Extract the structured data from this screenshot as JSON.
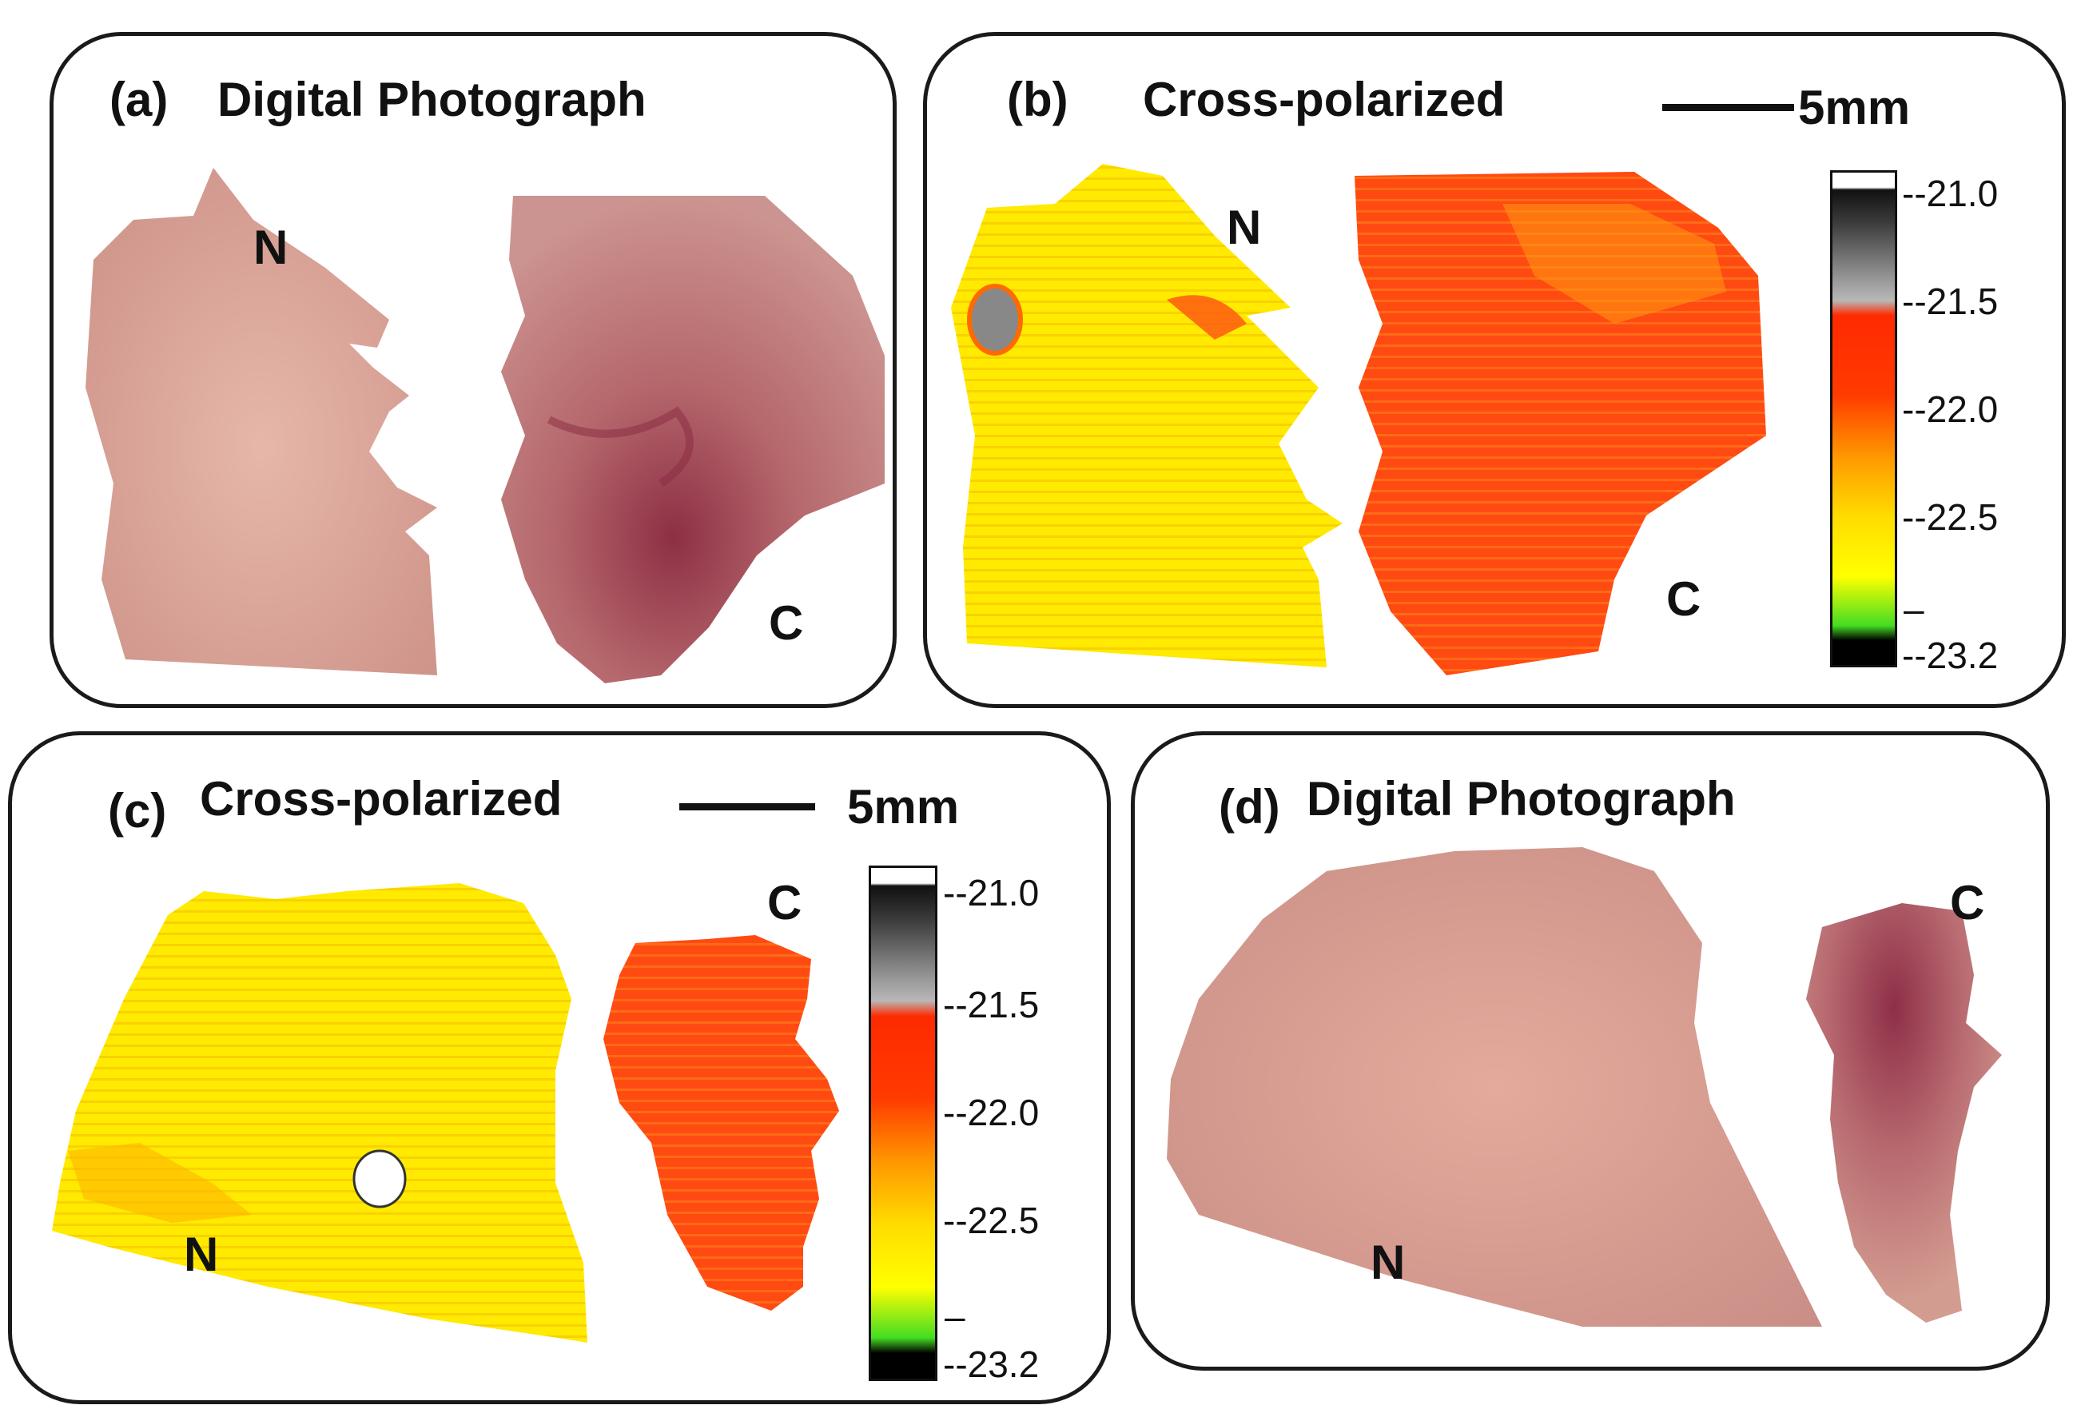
{
  "panels": {
    "a": {
      "label": "(a)",
      "title": "Digital Photograph",
      "n": "N",
      "c": "C"
    },
    "b": {
      "label": "(b)",
      "title": "Cross-polarized",
      "scale": "5mm",
      "n": "N",
      "c": "C"
    },
    "c": {
      "label": "(c)",
      "title": "Cross-polarized",
      "scale": "5mm",
      "n": "N",
      "c": "C"
    },
    "d": {
      "label": "(d)",
      "title": "Digital Photograph",
      "n": "N",
      "c": "C"
    }
  },
  "colorbar": {
    "ticks": [
      "--21.0",
      "--21.5",
      "--22.0",
      "--22.5",
      "–",
      "--23.2"
    ],
    "colors": [
      "#ffffff",
      "#3a3a3a",
      "#9a9a9a",
      "#ff3300",
      "#ff8800",
      "#ffff00",
      "#44dd22",
      "#000000"
    ]
  },
  "colors": {
    "tissue_normal": "#d8a49a",
    "tissue_cancer": "#a65058",
    "map_normal": "#ffe600",
    "map_cancer": "#ff4a12"
  }
}
